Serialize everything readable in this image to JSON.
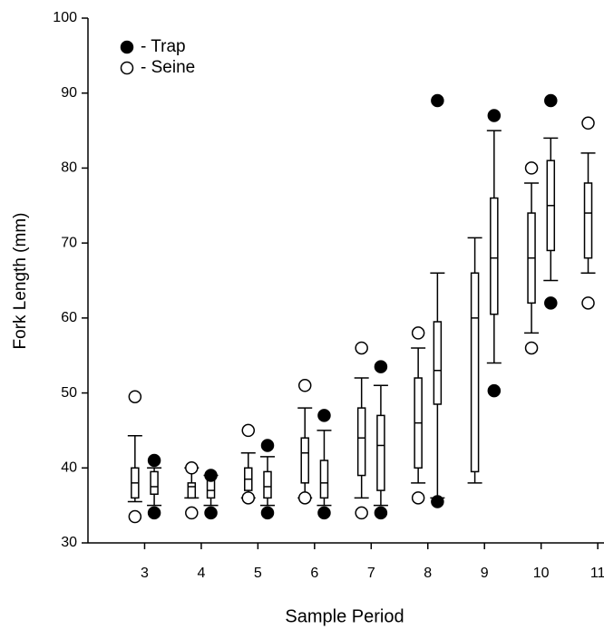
{
  "chart_data": {
    "type": "box",
    "x_label": "Sample Period",
    "y_label": "Fork Length (mm)",
    "x": [
      3,
      4,
      5,
      6,
      7,
      8,
      9,
      10,
      11
    ],
    "xlim": [
      2,
      11.11
    ],
    "xticks": [
      3,
      4,
      5,
      6,
      7,
      8,
      9,
      10,
      11
    ],
    "ylim": [
      30,
      100
    ],
    "yticks": [
      30,
      40,
      50,
      60,
      70,
      80,
      90,
      100
    ],
    "legend": "upper left",
    "series": [
      {
        "name": "- Trap",
        "color": "#000000",
        "marker": "filled",
        "whisker_low": [
          35,
          35,
          35,
          35,
          35,
          36,
          54,
          65,
          null
        ],
        "q1": [
          36.5,
          36,
          36,
          36,
          37,
          48.5,
          60.5,
          69,
          null
        ],
        "median": [
          37.5,
          37,
          37.5,
          38,
          43,
          53,
          68,
          75,
          null
        ],
        "q3": [
          39.5,
          38.5,
          39.5,
          41,
          47,
          59.5,
          76,
          81,
          null
        ],
        "whisker_high": [
          40,
          39,
          41.5,
          45,
          51,
          66,
          85,
          84,
          null
        ],
        "outlier_low": [
          34,
          34,
          34,
          34,
          34,
          35.5,
          50.3,
          62,
          null
        ],
        "outlier_high": [
          41,
          39,
          43,
          47,
          53.5,
          89,
          87,
          89,
          null
        ]
      },
      {
        "name": "- Seine",
        "color": "#000000",
        "marker": "open",
        "whisker_low": [
          35.5,
          36,
          36,
          36,
          36,
          38,
          38,
          58,
          66
        ],
        "q1": [
          36,
          36,
          37,
          38,
          39,
          40,
          39.5,
          62,
          68
        ],
        "median": [
          38,
          37.5,
          38.5,
          42,
          44,
          46,
          60,
          68,
          74
        ],
        "q3": [
          40,
          38,
          40,
          44,
          48,
          52,
          66,
          74,
          78
        ],
        "whisker_high": [
          44.3,
          40,
          42,
          48,
          52,
          56,
          70.7,
          78,
          82
        ],
        "outlier_low": [
          33.5,
          34,
          36,
          36,
          34,
          36,
          null,
          56,
          62
        ],
        "outlier_high": [
          49.5,
          40,
          45,
          51,
          56,
          58,
          null,
          80,
          86
        ]
      }
    ]
  }
}
